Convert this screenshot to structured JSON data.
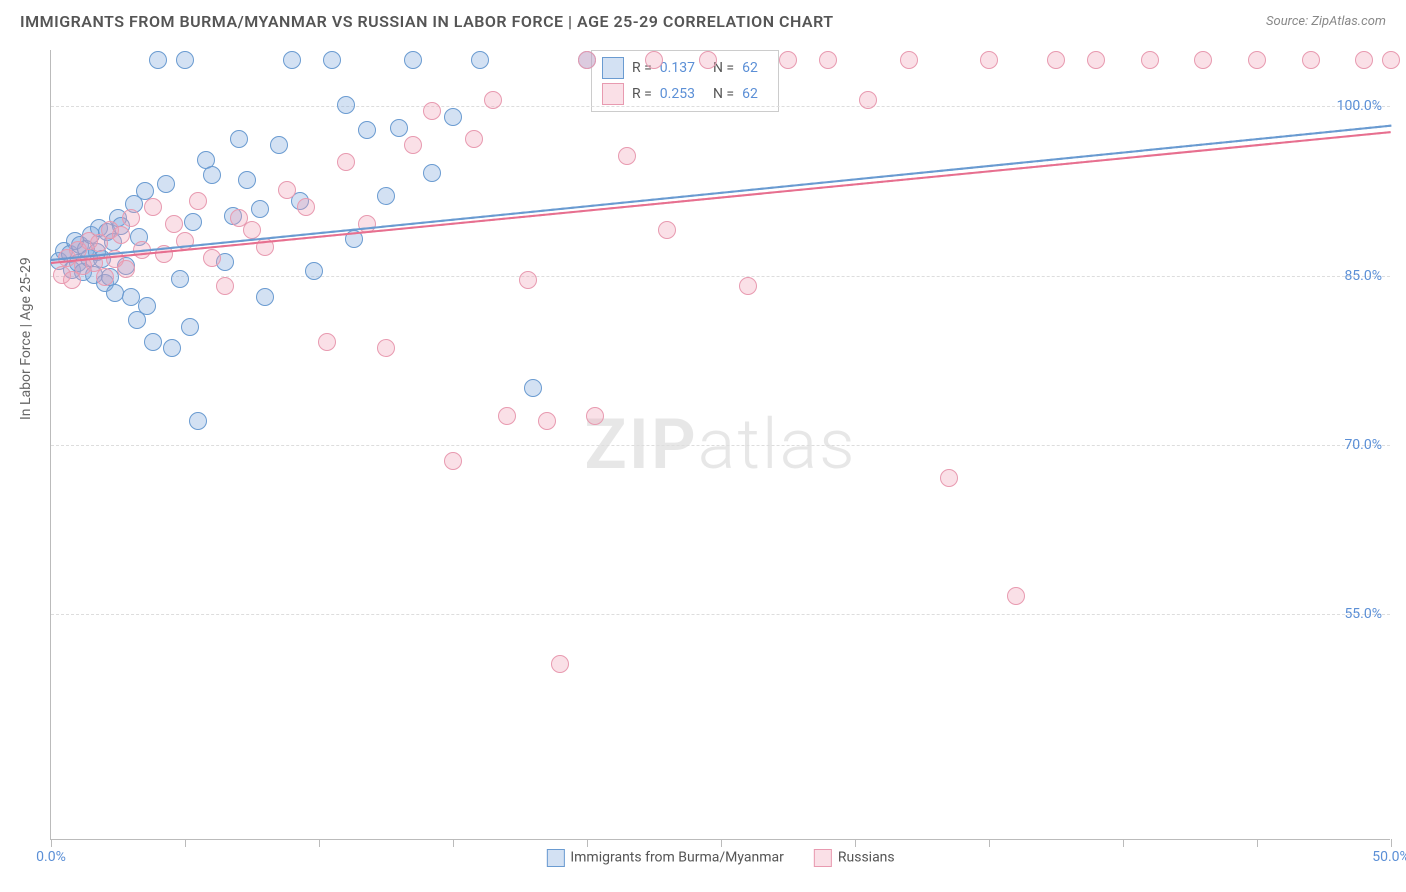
{
  "header": {
    "title": "IMMIGRANTS FROM BURMA/MYANMAR VS RUSSIAN IN LABOR FORCE | AGE 25-29 CORRELATION CHART",
    "source": "Source: ZipAtlas.com"
  },
  "chart": {
    "type": "scatter",
    "ylabel": "In Labor Force | Age 25-29",
    "background_color": "#ffffff",
    "grid_color": "#dddddd",
    "axis_color": "#bbbbbb",
    "tick_label_color": "#5b8fd6",
    "xlim": [
      0,
      50
    ],
    "ylim": [
      35,
      105
    ],
    "yticks": [
      {
        "v": 55,
        "label": "55.0%"
      },
      {
        "v": 70,
        "label": "70.0%"
      },
      {
        "v": 85,
        "label": "85.0%"
      },
      {
        "v": 100,
        "label": "100.0%"
      }
    ],
    "xticks": [
      {
        "v": 0,
        "label": "0.0%"
      },
      {
        "v": 5
      },
      {
        "v": 10
      },
      {
        "v": 15
      },
      {
        "v": 20
      },
      {
        "v": 25
      },
      {
        "v": 30
      },
      {
        "v": 35
      },
      {
        "v": 40
      },
      {
        "v": 45
      },
      {
        "v": 50,
        "label": "50.0%"
      }
    ],
    "watermark": {
      "part1": "ZIP",
      "part2": "atlas"
    },
    "series": [
      {
        "name": "Immigrants from Burma/Myanmar",
        "fill": "rgba(130,170,220,0.35)",
        "stroke": "#6a9bd1",
        "marker_size": 18,
        "regression": {
          "x1": 0,
          "y1": 86.5,
          "x2": 50,
          "y2": 98.4,
          "color": "#6a9bd1",
          "dash_color": "#6a9bd1"
        },
        "stats": {
          "R": "0.137",
          "N": "62"
        },
        "points": [
          [
            0.3,
            86.2
          ],
          [
            0.5,
            87.1
          ],
          [
            0.7,
            86.8
          ],
          [
            0.8,
            85.4
          ],
          [
            0.9,
            88.0
          ],
          [
            1.0,
            86.0
          ],
          [
            1.1,
            87.6
          ],
          [
            1.2,
            85.2
          ],
          [
            1.3,
            87.3
          ],
          [
            1.4,
            86.5
          ],
          [
            1.5,
            88.5
          ],
          [
            1.6,
            85.0
          ],
          [
            1.7,
            87.0
          ],
          [
            1.8,
            89.1
          ],
          [
            1.9,
            86.4
          ],
          [
            2.0,
            84.3
          ],
          [
            2.1,
            88.8
          ],
          [
            2.2,
            84.8
          ],
          [
            2.3,
            87.9
          ],
          [
            2.4,
            83.4
          ],
          [
            2.5,
            90.0
          ],
          [
            2.6,
            89.3
          ],
          [
            2.8,
            85.8
          ],
          [
            3.0,
            83.0
          ],
          [
            3.1,
            91.3
          ],
          [
            3.2,
            81.0
          ],
          [
            3.3,
            88.3
          ],
          [
            3.5,
            92.4
          ],
          [
            3.6,
            82.2
          ],
          [
            3.8,
            79.0
          ],
          [
            4.0,
            104.0
          ],
          [
            4.3,
            93.0
          ],
          [
            4.5,
            78.5
          ],
          [
            4.8,
            84.6
          ],
          [
            5.0,
            104.0
          ],
          [
            5.2,
            80.4
          ],
          [
            5.3,
            89.7
          ],
          [
            5.5,
            72.0
          ],
          [
            5.8,
            95.2
          ],
          [
            6.0,
            93.8
          ],
          [
            6.5,
            86.1
          ],
          [
            6.8,
            90.2
          ],
          [
            7.0,
            97.0
          ],
          [
            7.3,
            93.4
          ],
          [
            7.8,
            90.8
          ],
          [
            8.0,
            83.0
          ],
          [
            8.5,
            96.5
          ],
          [
            9.0,
            104.0
          ],
          [
            9.3,
            91.5
          ],
          [
            9.8,
            85.3
          ],
          [
            10.5,
            104.0
          ],
          [
            11.0,
            100.0
          ],
          [
            11.3,
            88.2
          ],
          [
            11.8,
            97.8
          ],
          [
            12.5,
            92.0
          ],
          [
            13.0,
            98.0
          ],
          [
            13.5,
            104.0
          ],
          [
            14.2,
            94.0
          ],
          [
            15.0,
            99.0
          ],
          [
            16.0,
            104.0
          ],
          [
            18.0,
            75.0
          ],
          [
            20.0,
            104.0
          ]
        ]
      },
      {
        "name": "Russians",
        "fill": "rgba(240,160,180,0.32)",
        "stroke": "#e89ab0",
        "marker_size": 18,
        "regression": {
          "x1": 0,
          "y1": 86.2,
          "x2": 50,
          "y2": 97.8,
          "color": "#e76f8f",
          "dash_color": "#e89ab0"
        },
        "stats": {
          "R": "0.253",
          "N": "62"
        },
        "points": [
          [
            0.4,
            85.0
          ],
          [
            0.6,
            86.5
          ],
          [
            0.8,
            84.5
          ],
          [
            1.0,
            87.2
          ],
          [
            1.2,
            85.8
          ],
          [
            1.4,
            88.0
          ],
          [
            1.6,
            86.0
          ],
          [
            1.8,
            87.8
          ],
          [
            2.0,
            84.8
          ],
          [
            2.2,
            89.0
          ],
          [
            2.4,
            86.4
          ],
          [
            2.6,
            88.5
          ],
          [
            2.8,
            85.5
          ],
          [
            3.0,
            90.0
          ],
          [
            3.4,
            87.2
          ],
          [
            3.8,
            91.0
          ],
          [
            4.2,
            86.8
          ],
          [
            4.6,
            89.5
          ],
          [
            5.0,
            88.0
          ],
          [
            5.5,
            91.5
          ],
          [
            6.0,
            86.5
          ],
          [
            6.5,
            84.0
          ],
          [
            7.0,
            90.0
          ],
          [
            7.5,
            89.0
          ],
          [
            8.0,
            87.5
          ],
          [
            8.8,
            92.5
          ],
          [
            9.5,
            91.0
          ],
          [
            10.3,
            79.0
          ],
          [
            11.0,
            95.0
          ],
          [
            11.8,
            89.5
          ],
          [
            12.5,
            78.5
          ],
          [
            13.5,
            96.5
          ],
          [
            14.2,
            99.5
          ],
          [
            15.0,
            68.5
          ],
          [
            15.8,
            97.0
          ],
          [
            16.5,
            100.5
          ],
          [
            17.0,
            72.5
          ],
          [
            17.8,
            84.5
          ],
          [
            18.5,
            72.0
          ],
          [
            19.0,
            50.5
          ],
          [
            20.0,
            104.0
          ],
          [
            20.3,
            72.5
          ],
          [
            21.5,
            95.5
          ],
          [
            22.5,
            104.0
          ],
          [
            23.0,
            89.0
          ],
          [
            24.5,
            104.0
          ],
          [
            26.0,
            84.0
          ],
          [
            27.5,
            104.0
          ],
          [
            29.0,
            104.0
          ],
          [
            30.5,
            100.5
          ],
          [
            32.0,
            104.0
          ],
          [
            33.5,
            67.0
          ],
          [
            35.0,
            104.0
          ],
          [
            36.0,
            56.5
          ],
          [
            37.5,
            104.0
          ],
          [
            39.0,
            104.0
          ],
          [
            41.0,
            104.0
          ],
          [
            43.0,
            104.0
          ],
          [
            45.0,
            104.0
          ],
          [
            47.0,
            104.0
          ],
          [
            49.0,
            104.0
          ],
          [
            50.0,
            104.0
          ]
        ]
      }
    ],
    "legend_box": {
      "rows": [
        {
          "swatch_fill": "rgba(130,170,220,0.35)",
          "swatch_stroke": "#6a9bd1",
          "R_label": "R =",
          "R": "0.137",
          "N_label": "N =",
          "N": "62"
        },
        {
          "swatch_fill": "rgba(240,160,180,0.32)",
          "swatch_stroke": "#e89ab0",
          "R_label": "R =",
          "R": "0.253",
          "N_label": "N =",
          "N": "62"
        }
      ]
    },
    "bottom_legend": [
      {
        "fill": "rgba(130,170,220,0.35)",
        "stroke": "#6a9bd1",
        "label": "Immigrants from Burma/Myanmar"
      },
      {
        "fill": "rgba(240,160,180,0.32)",
        "stroke": "#e89ab0",
        "label": "Russians"
      }
    ]
  }
}
